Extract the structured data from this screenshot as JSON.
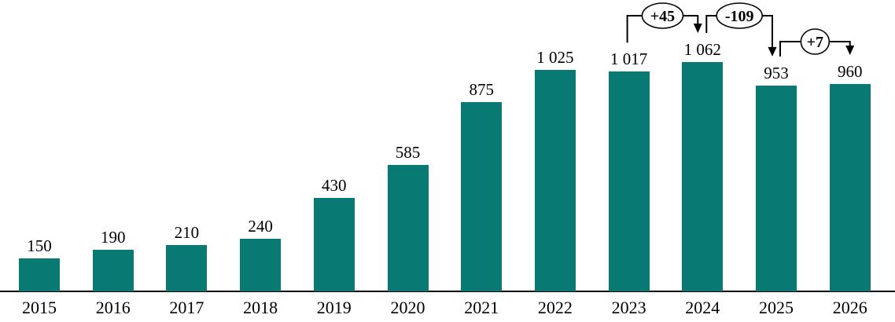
{
  "chart_data": {
    "type": "bar",
    "title": "",
    "xlabel": "",
    "ylabel": "",
    "categories": [
      "2015",
      "2016",
      "2017",
      "2018",
      "2019",
      "2020",
      "2021",
      "2022",
      "2023",
      "2024",
      "2025",
      "2026"
    ],
    "values": [
      150,
      190,
      210,
      240,
      430,
      585,
      875,
      1025,
      1017,
      1062,
      953,
      960
    ],
    "value_labels": [
      "150",
      "190",
      "210",
      "240",
      "430",
      "585",
      "875",
      "1 025",
      "1 017",
      "1 062",
      "953",
      "960"
    ],
    "ylim": [
      0,
      1100
    ],
    "grid": false,
    "legend": false,
    "bar_color": "#087a73",
    "axis_color": "#000000",
    "text_color": "#000000",
    "annotations": [
      {
        "label": "+45",
        "from": "2023",
        "to": "2024"
      },
      {
        "label": "-109",
        "from": "2024",
        "to": "2025"
      },
      {
        "label": "+7",
        "from": "2025",
        "to": "2026"
      }
    ]
  }
}
